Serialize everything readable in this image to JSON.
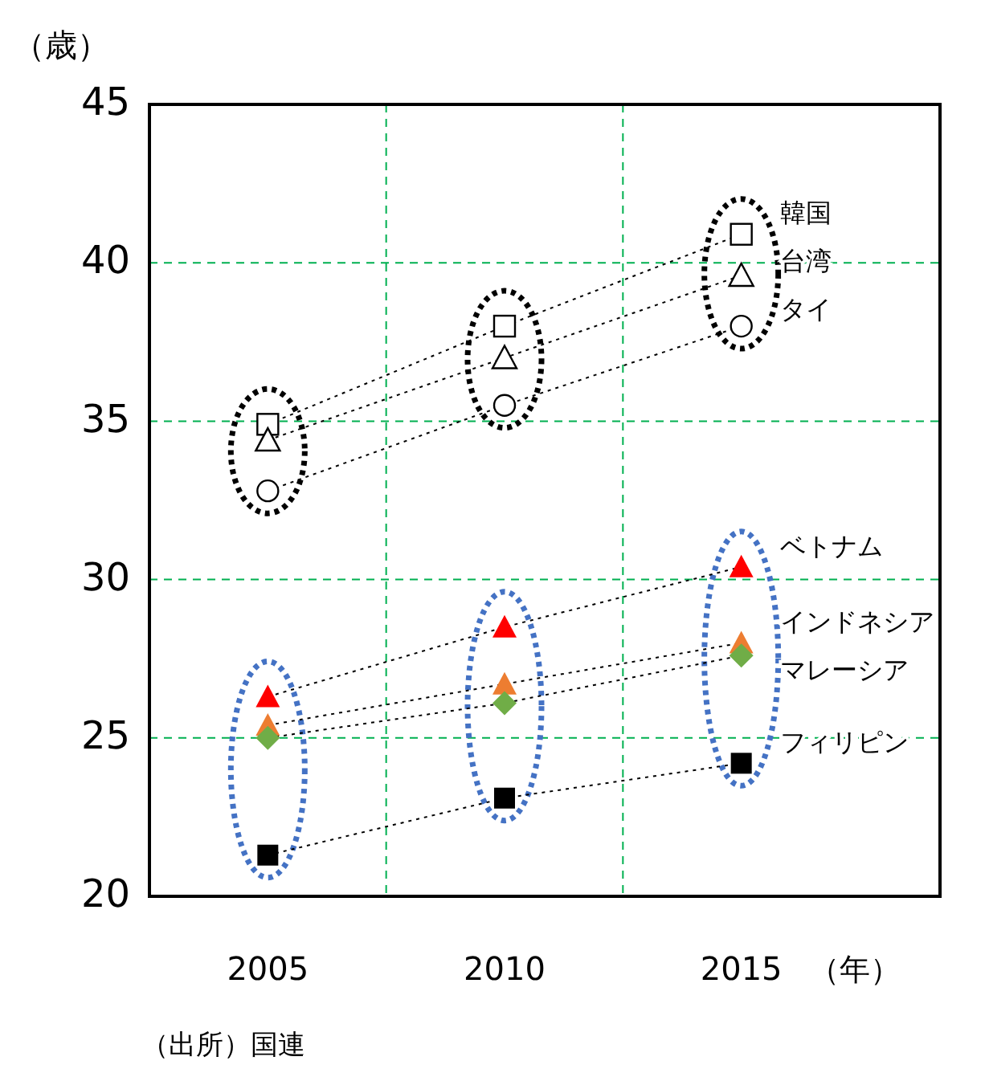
{
  "chart_data": {
    "type": "line",
    "ylabel": "（歳）",
    "xlabel": "（年）",
    "categories": [
      "2005",
      "2010",
      "2015"
    ],
    "ylim": [
      20,
      45
    ],
    "yticks": [
      20,
      25,
      30,
      35,
      40,
      45
    ],
    "grid": true,
    "line_style": "dotted",
    "legend": false,
    "series": [
      {
        "name": "韓国",
        "color": "#ffffff",
        "marker": "square",
        "values": [
          34.9,
          38.0,
          40.9
        ]
      },
      {
        "name": "台湾",
        "color": "#ffffff",
        "marker": "triangle",
        "values": [
          34.4,
          37.0,
          39.6
        ]
      },
      {
        "name": "タイ",
        "color": "#ffffff",
        "marker": "circle",
        "values": [
          32.8,
          35.5,
          38.0
        ]
      },
      {
        "name": "ベトナム",
        "color": "#ff0000",
        "marker": "triangle",
        "values": [
          26.3,
          28.5,
          30.4
        ]
      },
      {
        "name": "インドネシア",
        "color": "#ed7d31",
        "marker": "triangle",
        "values": [
          25.4,
          26.7,
          28.0
        ]
      },
      {
        "name": "マレーシア",
        "color": "#70ad47",
        "marker": "diamond",
        "values": [
          25.0,
          26.1,
          27.6
        ]
      },
      {
        "name": "フィリピン",
        "color": "#000000",
        "marker": "square",
        "values": [
          21.3,
          23.1,
          24.2
        ]
      }
    ],
    "annotations": [
      "（出所）国連"
    ]
  }
}
